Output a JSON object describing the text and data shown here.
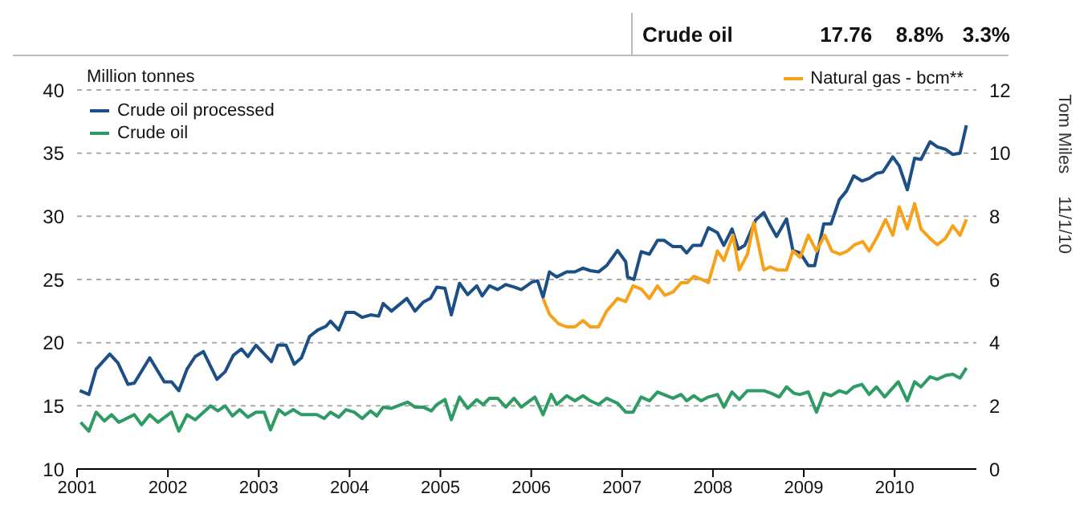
{
  "chart_data": {
    "type": "line",
    "ylabel": "Million tonnes",
    "xlim": [
      2001,
      2010.9
    ],
    "xticks": [
      {
        "value": 2001,
        "label": "2001"
      },
      {
        "value": 2002,
        "label": "2002"
      },
      {
        "value": 2003,
        "label": "2003"
      },
      {
        "value": 2004,
        "label": "2004"
      },
      {
        "value": 2005,
        "label": "2005"
      },
      {
        "value": 2006,
        "label": "2006"
      },
      {
        "value": 2007,
        "label": "2007"
      },
      {
        "value": 2008,
        "label": "2008"
      },
      {
        "value": 2009,
        "label": "2009"
      },
      {
        "value": 2010,
        "label": "2010"
      }
    ],
    "ylim": [
      10,
      40
    ],
    "yticks": [
      10,
      15,
      20,
      25,
      30,
      35,
      40
    ],
    "y2lim": [
      0,
      12
    ],
    "y2ticks": [
      0,
      2,
      4,
      6,
      8,
      10,
      12
    ],
    "grid": "y",
    "legend": "top",
    "marker": "none",
    "line_style": "solid",
    "annotations": [
      "Crude oil",
      "17.76",
      "8.8%",
      "3.3%",
      "Tom Miles",
      "11/1/10"
    ],
    "series": [
      {
        "name": "Crude oil processed",
        "color": "#1c4f86",
        "x": [
          2001.03,
          2001.13,
          2001.21,
          2001.36,
          2001.45,
          2001.56,
          2001.63,
          2001.8,
          2001.96,
          2002.04,
          2002.12,
          2002.21,
          2002.3,
          2002.39,
          2002.54,
          2002.63,
          2002.72,
          2002.81,
          2002.88,
          2002.97,
          2003.14,
          2003.21,
          2003.3,
          2003.39,
          2003.47,
          2003.56,
          2003.65,
          2003.74,
          2003.79,
          2003.88,
          2003.96,
          2004.05,
          2004.14,
          2004.23,
          2004.32,
          2004.37,
          2004.46,
          2004.63,
          2004.72,
          2004.81,
          2004.89,
          2004.96,
          2005.05,
          2005.12,
          2005.21,
          2005.3,
          2005.4,
          2005.46,
          2005.54,
          2005.63,
          2005.72,
          2005.81,
          2005.89,
          2006.01,
          2006.07,
          2006.13,
          2006.2,
          2006.28,
          2006.39,
          2006.48,
          2006.57,
          2006.65,
          2006.74,
          2006.83,
          2006.95,
          2007.04,
          2007.06,
          2007.13,
          2007.21,
          2007.3,
          2007.39,
          2007.46,
          2007.56,
          2007.65,
          2007.71,
          2007.78,
          2007.87,
          2007.95,
          2008.05,
          2008.12,
          2008.21,
          2008.28,
          2008.35,
          2008.47,
          2008.56,
          2008.63,
          2008.7,
          2008.81,
          2008.88,
          2008.96,
          2009.05,
          2009.12,
          2009.22,
          2009.3,
          2009.39,
          2009.47,
          2009.55,
          2009.64,
          2009.72,
          2009.8,
          2009.87,
          2009.98,
          2010.05,
          2010.14,
          2010.22,
          2010.29,
          2010.39,
          2010.47,
          2010.56,
          2010.64,
          2010.72,
          2010.79
        ],
        "values": [
          16.2,
          15.9,
          17.9,
          19.1,
          18.4,
          16.7,
          16.8,
          18.8,
          16.9,
          16.9,
          16.2,
          17.9,
          18.9,
          19.3,
          17.1,
          17.7,
          19.0,
          19.5,
          18.9,
          19.8,
          18.5,
          19.8,
          19.8,
          18.3,
          18.8,
          20.5,
          21.0,
          21.3,
          21.7,
          21.0,
          22.4,
          22.4,
          22.0,
          22.2,
          22.1,
          23.1,
          22.5,
          23.5,
          22.5,
          23.2,
          23.5,
          24.4,
          24.3,
          22.2,
          24.7,
          23.8,
          24.5,
          23.7,
          24.5,
          24.2,
          24.6,
          24.4,
          24.2,
          24.8,
          24.9,
          23.6,
          25.6,
          25.2,
          25.6,
          25.6,
          25.9,
          25.7,
          25.6,
          26.1,
          27.3,
          26.4,
          25.2,
          25.0,
          27.2,
          27.0,
          28.1,
          28.1,
          27.6,
          27.6,
          27.1,
          27.7,
          27.7,
          29.1,
          28.7,
          27.7,
          29.0,
          27.4,
          27.7,
          29.7,
          30.3,
          29.3,
          28.4,
          29.8,
          27.3,
          27.1,
          26.1,
          26.1,
          29.4,
          29.4,
          31.3,
          32.0,
          33.2,
          32.8,
          33.0,
          33.4,
          33.5,
          34.7,
          34.0,
          32.1,
          34.6,
          34.5,
          35.9,
          35.5,
          35.3,
          34.9,
          35.0,
          37.2
        ]
      },
      {
        "name": "Crude oil",
        "color": "#2e9a64",
        "x": [
          2001.04,
          2001.13,
          2001.21,
          2001.3,
          2001.38,
          2001.46,
          2001.63,
          2001.71,
          2001.8,
          2001.89,
          2002.04,
          2002.12,
          2002.21,
          2002.3,
          2002.47,
          2002.55,
          2002.63,
          2002.71,
          2002.79,
          2002.88,
          2002.97,
          2003.06,
          2003.13,
          2003.22,
          2003.29,
          2003.38,
          2003.47,
          2003.64,
          2003.72,
          2003.79,
          2003.88,
          2003.96,
          2004.05,
          2004.14,
          2004.23,
          2004.3,
          2004.37,
          2004.46,
          2004.64,
          2004.72,
          2004.81,
          2004.9,
          2004.96,
          2005.05,
          2005.12,
          2005.21,
          2005.3,
          2005.4,
          2005.47,
          2005.54,
          2005.63,
          2005.72,
          2005.81,
          2005.89,
          2006.04,
          2006.13,
          2006.22,
          2006.28,
          2006.39,
          2006.48,
          2006.57,
          2006.65,
          2006.74,
          2006.83,
          2006.95,
          2007.04,
          2007.12,
          2007.21,
          2007.3,
          2007.39,
          2007.56,
          2007.65,
          2007.71,
          2007.79,
          2007.87,
          2007.95,
          2008.05,
          2008.12,
          2008.21,
          2008.29,
          2008.38,
          2008.56,
          2008.64,
          2008.73,
          2008.81,
          2008.89,
          2008.96,
          2009.05,
          2009.14,
          2009.22,
          2009.3,
          2009.39,
          2009.47,
          2009.55,
          2009.64,
          2009.72,
          2009.8,
          2009.89,
          2010.04,
          2010.14,
          2010.22,
          2010.29,
          2010.39,
          2010.47,
          2010.56,
          2010.64,
          2010.72,
          2010.79
        ],
        "values": [
          13.7,
          13.0,
          14.5,
          13.8,
          14.3,
          13.7,
          14.3,
          13.5,
          14.3,
          13.7,
          14.5,
          13.0,
          14.3,
          13.9,
          15.0,
          14.6,
          15.0,
          14.2,
          14.7,
          14.1,
          14.5,
          14.5,
          13.1,
          14.7,
          14.3,
          14.7,
          14.3,
          14.3,
          14.0,
          14.5,
          14.1,
          14.7,
          14.5,
          14.0,
          14.6,
          14.2,
          14.9,
          14.8,
          15.3,
          14.9,
          14.9,
          14.6,
          15.1,
          15.5,
          13.9,
          15.7,
          14.8,
          15.5,
          15.1,
          15.6,
          15.6,
          14.9,
          15.6,
          14.9,
          15.7,
          14.3,
          15.9,
          15.1,
          15.8,
          15.4,
          15.8,
          15.4,
          15.1,
          15.6,
          15.2,
          14.5,
          14.5,
          15.7,
          15.4,
          16.1,
          15.6,
          15.9,
          15.4,
          15.8,
          15.4,
          15.7,
          15.9,
          14.9,
          16.1,
          15.5,
          16.2,
          16.2,
          16.0,
          15.7,
          16.5,
          16.0,
          15.9,
          16.1,
          14.5,
          16.0,
          15.8,
          16.2,
          16.0,
          16.5,
          16.7,
          15.9,
          16.5,
          15.7,
          16.9,
          15.4,
          16.9,
          16.5,
          17.3,
          17.1,
          17.4,
          17.5,
          17.2,
          18.0
        ]
      },
      {
        "name": "Natural gas - bcm**",
        "color": "#f7a11a",
        "axis": "y2",
        "x": [
          2006.13,
          2006.2,
          2006.3,
          2006.39,
          2006.48,
          2006.57,
          2006.65,
          2006.74,
          2006.83,
          2006.95,
          2007.04,
          2007.12,
          2007.21,
          2007.3,
          2007.39,
          2007.47,
          2007.56,
          2007.65,
          2007.72,
          2007.79,
          2007.88,
          2007.95,
          2008.05,
          2008.12,
          2008.22,
          2008.29,
          2008.38,
          2008.45,
          2008.56,
          2008.63,
          2008.71,
          2008.81,
          2008.88,
          2008.96,
          2009.05,
          2009.14,
          2009.23,
          2009.31,
          2009.4,
          2009.48,
          2009.56,
          2009.65,
          2009.72,
          2009.8,
          2009.9,
          2009.98,
          2010.05,
          2010.14,
          2010.22,
          2010.29,
          2010.39,
          2010.47,
          2010.56,
          2010.64,
          2010.72,
          2010.79
        ],
        "values": [
          5.4,
          4.9,
          4.6,
          4.5,
          4.5,
          4.7,
          4.5,
          4.5,
          5.0,
          5.4,
          5.3,
          5.8,
          5.7,
          5.4,
          5.8,
          5.5,
          5.6,
          5.9,
          5.9,
          6.1,
          6.0,
          5.9,
          6.9,
          6.6,
          7.4,
          6.3,
          6.8,
          7.8,
          6.3,
          6.4,
          6.3,
          6.3,
          6.9,
          6.7,
          7.4,
          6.9,
          7.4,
          6.9,
          6.8,
          6.9,
          7.1,
          7.2,
          6.9,
          7.3,
          7.9,
          7.4,
          8.3,
          7.6,
          8.4,
          7.6,
          7.3,
          7.1,
          7.3,
          7.7,
          7.4,
          7.9
        ]
      }
    ]
  }
}
